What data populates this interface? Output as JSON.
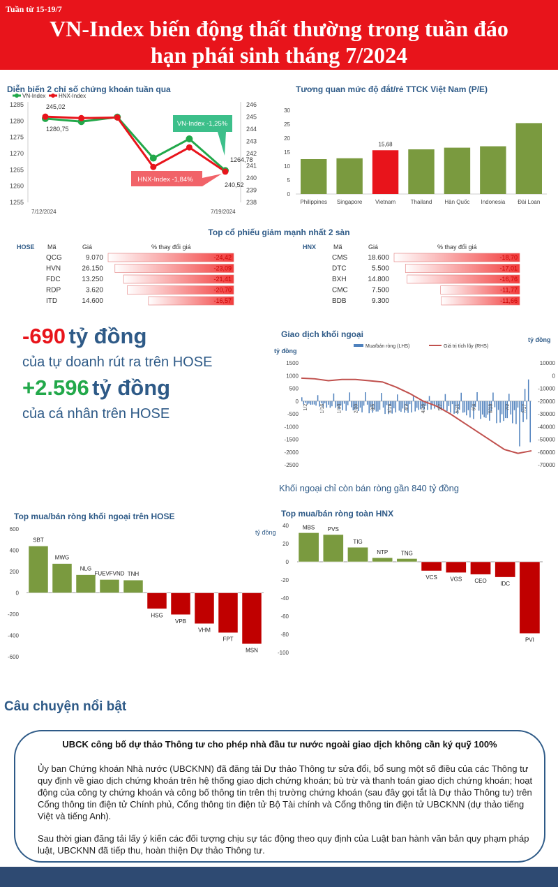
{
  "header": {
    "week": "Tuần từ 15-19/7",
    "title_line1": "VN-Index biến động thất thường trong tuần đáo",
    "title_line2": "hạn phái sinh tháng 7/2024"
  },
  "colors": {
    "red": "#e8141b",
    "green": "#7a9a3f",
    "navy": "#2e5a87",
    "blue_bar": "#4f81bd"
  },
  "index_chart": {
    "title": "Diễn biến 2 chỉ số chứng khoán tuần qua",
    "legend": [
      "VN-Index",
      "HNX-Index"
    ],
    "x_labels": [
      "7/12/2024",
      "7/19/2024"
    ],
    "left_ticks": [
      "1285",
      "1280",
      "1275",
      "1270",
      "1265",
      "1260",
      "1255"
    ],
    "right_ticks": [
      "246",
      "245",
      "244",
      "243",
      "242",
      "241",
      "240",
      "239",
      "238"
    ],
    "vn_values": [
      1280.75,
      1279.8,
      1281.2,
      1268.6,
      1274.5,
      1264.78
    ],
    "hnx_values": [
      245.02,
      244.9,
      244.95,
      240.9,
      242.5,
      240.52
    ],
    "labels": {
      "vn_start": "1280,75",
      "hnx_start": "245,02",
      "vn_end": "1264,78",
      "hnx_end": "240,52"
    },
    "callouts": {
      "vn": "VN-Index -1,25%",
      "hnx": "HNX-Index -1,84%"
    }
  },
  "pe_chart": {
    "title": "Tương quan mức độ đắt/rẻ TTCK Việt Nam (P/E)",
    "categories": [
      "Philippines",
      "Singapore",
      "Vietnam",
      "Thailand",
      "Hàn Quốc",
      "Indonesia",
      "Đài Loan"
    ],
    "values": [
      12.5,
      12.8,
      15.68,
      16.0,
      16.6,
      17.1,
      25.4
    ],
    "ticks": [
      "30",
      "25",
      "20",
      "15",
      "10",
      "5",
      "0"
    ],
    "label_vn": "15,68"
  },
  "top_losers": {
    "title": "Top cổ phiếu giảm mạnh nhất 2 sàn",
    "hose": {
      "exchange": "HOSE",
      "col_ma": "Mã",
      "col_gia": "Giá",
      "col_pct": "% thay đổi giá",
      "rows": [
        {
          "ma": "QCG",
          "gia": "9.070",
          "pct": "-24,42"
        },
        {
          "ma": "HVN",
          "gia": "26.150",
          "pct": "-23,09"
        },
        {
          "ma": "FDC",
          "gia": "13.250",
          "pct": "-21,41"
        },
        {
          "ma": "RDP",
          "gia": "3.620",
          "pct": "-20,70"
        },
        {
          "ma": "ITD",
          "gia": "14.600",
          "pct": "-16,57"
        }
      ],
      "magnitudes": [
        24.42,
        23.09,
        21.41,
        20.7,
        16.57
      ]
    },
    "hnx": {
      "exchange": "HNX",
      "col_ma": "Mã",
      "col_gia": "Giá",
      "col_pct": "% thay đổi giá",
      "rows": [
        {
          "ma": "CMS",
          "gia": "18.600",
          "pct": "-18,70"
        },
        {
          "ma": "DTC",
          "gia": "5.500",
          "pct": "-17,01"
        },
        {
          "ma": "BXH",
          "gia": "14.800",
          "pct": "-16,76"
        },
        {
          "ma": "CMC",
          "gia": "7.500",
          "pct": "-11,77"
        },
        {
          "ma": "BDB",
          "gia": "9.300",
          "pct": "-11,66"
        }
      ],
      "magnitudes": [
        18.7,
        17.01,
        16.76,
        11.77,
        11.66
      ]
    }
  },
  "highlights": {
    "num1": "-690",
    "unit1": "tỷ đồng",
    "text1": "của tự doanh rút ra trên HOSE",
    "num2": "+2.596",
    "unit2": "tỷ đồng",
    "text2": "của cá nhân trên HOSE"
  },
  "foreign_chart": {
    "title": "Giao dịch khối ngoại",
    "unit_left": "tỷ đồng",
    "unit_right": "tỷ đồng",
    "legend_bar": "Mua/bán ròng (LHS)",
    "legend_line": "Giá trị tích lũy (RHS)",
    "left_ticks": [
      "1500",
      "1000",
      "500",
      "0",
      "-500",
      "-1000",
      "-1500",
      "-2000",
      "-2500"
    ],
    "right_ticks": [
      "10000",
      "0",
      "-10000",
      "-20000",
      "-30000",
      "-40000",
      "-50000",
      "-60000",
      "-70000"
    ],
    "x_labels": [
      "1/2",
      "1/16",
      "1/30",
      "2/20",
      "3/5",
      "3/19",
      "4/2",
      "4/16",
      "5/7",
      "5/21",
      "6/4",
      "6/18",
      "7/2",
      "7/17"
    ],
    "caption": "Khối ngoại chỉ còn bán ròng gần 840 tỷ đồng"
  },
  "hose_foreign": {
    "title": "Top mua/bán ròng khối ngoại trên HOSE",
    "ticks": [
      "600",
      "400",
      "200",
      "0",
      "-200",
      "-400",
      "-600"
    ],
    "categories": [
      "SBT",
      "MWG",
      "NLG",
      "FUEVFVND",
      "TNH",
      "HSG",
      "VPB",
      "VHM",
      "FPT",
      "MSN"
    ],
    "values": [
      440,
      275,
      170,
      125,
      120,
      -150,
      -205,
      -290,
      -375,
      -480
    ]
  },
  "hnx_foreign": {
    "title": "Top mua/bán ròng toàn HNX",
    "unit": "tỷ đồng",
    "ticks": [
      "40",
      "20",
      "0",
      "-20",
      "-40",
      "-60",
      "-80",
      "-100"
    ],
    "categories": [
      "MBS",
      "PVS",
      "TIG",
      "NTP",
      "TNG",
      "VCS",
      "VGS",
      "CEO",
      "IDC",
      "PVI"
    ],
    "values": [
      32,
      30,
      16,
      4.5,
      3.5,
      -10,
      -12,
      -14,
      -17,
      -79
    ]
  },
  "story": {
    "section": "Câu chuyện nổi bật",
    "headline": "UBCK công bố dự thảo Thông tư cho phép nhà đầu tư nước ngoài giao dịch không cần ký quỹ 100%",
    "para1": "Ủy ban Chứng khoán Nhà nước (UBCKNN) đã đăng tải Dự thảo Thông tư sửa đổi, bổ sung một số điều của các Thông tư quy định về giao dịch chứng khoán trên hệ thống giao dịch chứng khoán; bù trừ và thanh toán giao dịch chứng khoán; hoạt động của công ty chứng khoán và công bố thông tin trên thị trường chứng khoán (sau đây gọi tắt là Dự thảo Thông tư) trên Cổng thông tin điện tử Chính phủ, Cổng thông tin điện tử Bộ Tài chính và Cổng thông tin điện tử UBCKNN (dự thảo tiếng Việt và tiếng Anh).",
    "para2": "Sau thời gian đăng tải lấy ý kiến các đối tượng chịu sự tác động theo quy định của Luật ban hành văn bản quy phạm pháp luật, UBCKNN đã tiếp thu, hoàn thiện Dự thảo Thông tư."
  },
  "chart_data": [
    {
      "type": "line",
      "title": "Diễn biến 2 chỉ số chứng khoán tuần qua",
      "x": [
        "7/12/2024",
        "",
        "",
        "",
        "",
        "7/19/2024"
      ],
      "series": [
        {
          "name": "VN-Index",
          "values": [
            1280.75,
            1279.8,
            1281.2,
            1268.6,
            1274.5,
            1264.78
          ]
        },
        {
          "name": "HNX-Index",
          "values": [
            245.02,
            244.9,
            244.95,
            240.9,
            242.5,
            240.52
          ]
        }
      ],
      "ylim": [
        1255,
        1285
      ],
      "y2lim": [
        238,
        246
      ]
    },
    {
      "type": "bar",
      "title": "Tương quan mức độ đắt/rẻ TTCK Việt Nam (P/E)",
      "categories": [
        "Philippines",
        "Singapore",
        "Vietnam",
        "Thailand",
        "Hàn Quốc",
        "Indonesia",
        "Đài Loan"
      ],
      "values": [
        12.5,
        12.8,
        15.68,
        16.0,
        16.6,
        17.1,
        25.4
      ],
      "ylim": [
        0,
        30
      ]
    },
    {
      "type": "bar",
      "title": "Top mua/bán ròng khối ngoại trên HOSE",
      "categories": [
        "SBT",
        "MWG",
        "NLG",
        "FUEVFVND",
        "TNH",
        "HSG",
        "VPB",
        "VHM",
        "FPT",
        "MSN"
      ],
      "values": [
        440,
        275,
        170,
        125,
        120,
        -150,
        -205,
        -290,
        -375,
        -480
      ],
      "ylim": [
        -600,
        600
      ]
    },
    {
      "type": "bar",
      "title": "Top mua/bán ròng toàn HNX",
      "categories": [
        "MBS",
        "PVS",
        "TIG",
        "NTP",
        "TNG",
        "VCS",
        "VGS",
        "CEO",
        "IDC",
        "PVI"
      ],
      "values": [
        32,
        30,
        16,
        4.5,
        3.5,
        -10,
        -12,
        -14,
        -17,
        -79
      ],
      "ylim": [
        -100,
        40
      ]
    },
    {
      "type": "bar",
      "title": "Giao dịch khối ngoại",
      "series": [
        {
          "name": "Mua/bán ròng (LHS)"
        },
        {
          "name": "Giá trị tích lũy (RHS)"
        }
      ],
      "ylim": [
        -2500,
        1500
      ],
      "y2lim": [
        -70000,
        10000
      ]
    }
  ]
}
